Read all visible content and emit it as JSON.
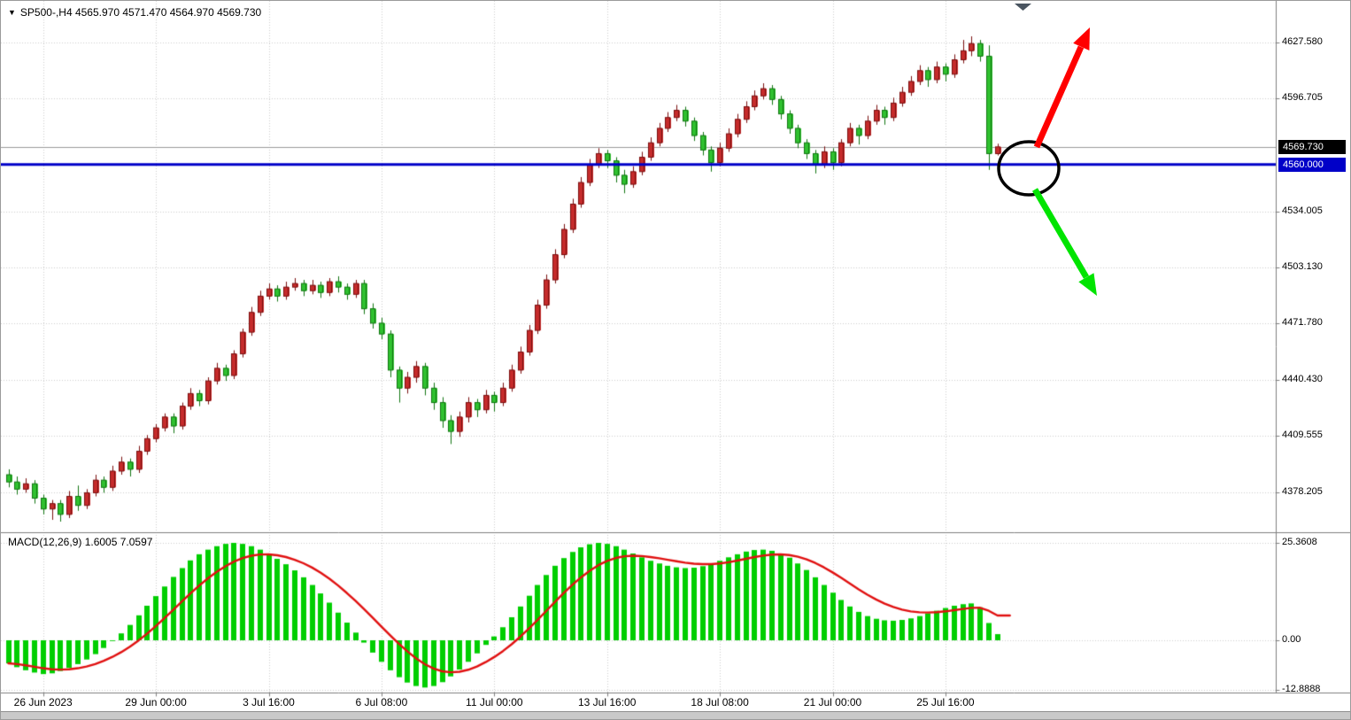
{
  "header": {
    "collapse_icon": "▼",
    "title": "SP500-,H4 4565.970 4571.470 4564.970 4569.730"
  },
  "macd_panel": {
    "label": "MACD(12,26,9) 1.6005 7.0597"
  },
  "price_axis": {
    "labels": [
      {
        "text": "4627.580",
        "value": 4627.58
      },
      {
        "text": "4596.705",
        "value": 4596.705
      },
      {
        "text": "4534.005",
        "value": 4534.005
      },
      {
        "text": "4503.130",
        "value": 4503.13
      },
      {
        "text": "4471.780",
        "value": 4471.78
      },
      {
        "text": "4440.430",
        "value": 4440.43
      },
      {
        "text": "4409.555",
        "value": 4409.555
      },
      {
        "text": "4378.205",
        "value": 4378.205
      }
    ],
    "current_tag": {
      "text": "4569.730",
      "value": 4569.73,
      "bg": "#000000"
    },
    "hline_tag": {
      "text": "4560.000",
      "value": 4560.0,
      "bg": "#0000C8"
    }
  },
  "time_axis": {
    "labels": [
      {
        "text": "26 Jun 2023",
        "bar": 4
      },
      {
        "text": "29 Jun 00:00",
        "bar": 17
      },
      {
        "text": "3 Jul 16:00",
        "bar": 30
      },
      {
        "text": "6 Jul 08:00",
        "bar": 43
      },
      {
        "text": "11 Jul 00:00",
        "bar": 56
      },
      {
        "text": "13 Jul 16:00",
        "bar": 69
      },
      {
        "text": "18 Jul 08:00",
        "bar": 82
      },
      {
        "text": "21 Jul 00:00",
        "bar": 95
      },
      {
        "text": "25 Jul 16:00",
        "bar": 108
      }
    ]
  },
  "chart_data": [
    {
      "type": "candlestick",
      "symbol": "SP500-",
      "timeframe": "H4",
      "current_ohlc": {
        "open": 4565.97,
        "high": 4571.47,
        "low": 4564.97,
        "close": 4569.73
      },
      "horizontal_line": 4560.0,
      "ylim": [
        4356,
        4648
      ],
      "candles": [
        [
          4388,
          4391,
          4381,
          4384
        ],
        [
          4384,
          4387,
          4377,
          4380
        ],
        [
          4380,
          4386,
          4378,
          4383
        ],
        [
          4383,
          4385,
          4372,
          4375
        ],
        [
          4375,
          4377,
          4366,
          4369
        ],
        [
          4369,
          4374,
          4363,
          4372
        ],
        [
          4372,
          4374,
          4362,
          4366
        ],
        [
          4366,
          4379,
          4364,
          4376
        ],
        [
          4376,
          4382,
          4368,
          4371
        ],
        [
          4371,
          4380,
          4369,
          4378
        ],
        [
          4378,
          4388,
          4376,
          4385
        ],
        [
          4385,
          4387,
          4378,
          4381
        ],
        [
          4381,
          4393,
          4379,
          4390
        ],
        [
          4390,
          4398,
          4388,
          4395
        ],
        [
          4395,
          4397,
          4387,
          4391
        ],
        [
          4391,
          4404,
          4389,
          4401
        ],
        [
          4401,
          4410,
          4399,
          4408
        ],
        [
          4408,
          4416,
          4406,
          4414
        ],
        [
          4414,
          4422,
          4412,
          4420
        ],
        [
          4420,
          4422,
          4411,
          4415
        ],
        [
          4415,
          4428,
          4413,
          4426
        ],
        [
          4426,
          4436,
          4424,
          4433
        ],
        [
          4433,
          4435,
          4426,
          4429
        ],
        [
          4429,
          4442,
          4427,
          4440
        ],
        [
          4440,
          4450,
          4438,
          4447
        ],
        [
          4447,
          4449,
          4440,
          4443
        ],
        [
          4443,
          4457,
          4441,
          4455
        ],
        [
          4455,
          4469,
          4453,
          4467
        ],
        [
          4467,
          4481,
          4465,
          4478
        ],
        [
          4478,
          4490,
          4476,
          4487
        ],
        [
          4487,
          4494,
          4485,
          4491
        ],
        [
          4491,
          4493,
          4484,
          4487
        ],
        [
          4487,
          4495,
          4485,
          4492
        ],
        [
          4492,
          4497,
          4490,
          4494
        ],
        [
          4494,
          4496,
          4487,
          4490
        ],
        [
          4490,
          4496,
          4488,
          4493
        ],
        [
          4493,
          4495,
          4486,
          4489
        ],
        [
          4489,
          4497,
          4487,
          4495
        ],
        [
          4495,
          4498,
          4489,
          4492
        ],
        [
          4492,
          4494,
          4485,
          4488
        ],
        [
          4488,
          4496,
          4486,
          4494
        ],
        [
          4494,
          4496,
          4477,
          4480
        ],
        [
          4480,
          4483,
          4469,
          4472
        ],
        [
          4472,
          4475,
          4463,
          4466
        ],
        [
          4466,
          4468,
          4442,
          4446
        ],
        [
          4446,
          4448,
          4428,
          4436
        ],
        [
          4436,
          4445,
          4433,
          4442
        ],
        [
          4442,
          4451,
          4439,
          4448
        ],
        [
          4448,
          4450,
          4432,
          4436
        ],
        [
          4436,
          4439,
          4424,
          4428
        ],
        [
          4428,
          4431,
          4414,
          4418
        ],
        [
          4418,
          4421,
          4405,
          4412
        ],
        [
          4412,
          4423,
          4409,
          4420
        ],
        [
          4420,
          4431,
          4417,
          4428
        ],
        [
          4428,
          4430,
          4420,
          4424
        ],
        [
          4424,
          4435,
          4422,
          4432
        ],
        [
          4432,
          4434,
          4423,
          4428
        ],
        [
          4428,
          4439,
          4426,
          4436
        ],
        [
          4436,
          4449,
          4434,
          4446
        ],
        [
          4446,
          4459,
          4444,
          4456
        ],
        [
          4456,
          4471,
          4454,
          4468
        ],
        [
          4468,
          4485,
          4466,
          4482
        ],
        [
          4482,
          4499,
          4480,
          4496
        ],
        [
          4496,
          4513,
          4494,
          4510
        ],
        [
          4510,
          4527,
          4508,
          4524
        ],
        [
          4524,
          4541,
          4522,
          4538
        ],
        [
          4538,
          4553,
          4536,
          4550
        ],
        [
          4550,
          4563,
          4548,
          4560
        ],
        [
          4560,
          4569,
          4558,
          4566
        ],
        [
          4566,
          4568,
          4558,
          4562
        ],
        [
          4562,
          4564,
          4550,
          4554
        ],
        [
          4554,
          4557,
          4544,
          4549
        ],
        [
          4549,
          4559,
          4547,
          4556
        ],
        [
          4556,
          4567,
          4554,
          4564
        ],
        [
          4564,
          4575,
          4562,
          4572
        ],
        [
          4572,
          4583,
          4570,
          4580
        ],
        [
          4580,
          4589,
          4578,
          4586
        ],
        [
          4586,
          4593,
          4584,
          4590
        ],
        [
          4590,
          4592,
          4581,
          4584
        ],
        [
          4584,
          4586,
          4573,
          4576
        ],
        [
          4576,
          4578,
          4565,
          4568
        ],
        [
          4568,
          4570,
          4556,
          4561
        ],
        [
          4561,
          4572,
          4559,
          4569
        ],
        [
          4569,
          4580,
          4567,
          4577
        ],
        [
          4577,
          4588,
          4575,
          4585
        ],
        [
          4585,
          4595,
          4583,
          4592
        ],
        [
          4592,
          4601,
          4590,
          4598
        ],
        [
          4598,
          4605,
          4596,
          4602
        ],
        [
          4602,
          4604,
          4593,
          4596
        ],
        [
          4596,
          4598,
          4585,
          4588
        ],
        [
          4588,
          4590,
          4577,
          4580
        ],
        [
          4580,
          4582,
          4569,
          4572
        ],
        [
          4572,
          4574,
          4563,
          4566
        ],
        [
          4566,
          4568,
          4555,
          4560
        ],
        [
          4560,
          4570,
          4558,
          4567
        ],
        [
          4567,
          4569,
          4557,
          4561
        ],
        [
          4561,
          4574,
          4559,
          4572
        ],
        [
          4572,
          4583,
          4570,
          4580
        ],
        [
          4580,
          4582,
          4571,
          4576
        ],
        [
          4576,
          4587,
          4574,
          4584
        ],
        [
          4584,
          4593,
          4582,
          4590
        ],
        [
          4590,
          4592,
          4582,
          4586
        ],
        [
          4586,
          4597,
          4584,
          4594
        ],
        [
          4594,
          4603,
          4592,
          4600
        ],
        [
          4600,
          4609,
          4598,
          4606
        ],
        [
          4606,
          4615,
          4604,
          4612
        ],
        [
          4612,
          4614,
          4603,
          4607
        ],
        [
          4607,
          4617,
          4605,
          4614
        ],
        [
          4614,
          4616,
          4606,
          4610
        ],
        [
          4610,
          4621,
          4608,
          4618
        ],
        [
          4618,
          4629,
          4616,
          4623
        ],
        [
          4623,
          4631,
          4620,
          4627
        ],
        [
          4627,
          4629,
          4617,
          4620
        ],
        [
          4620,
          4626,
          4557,
          4566
        ],
        [
          4565.97,
          4571.47,
          4564.97,
          4569.73
        ]
      ]
    },
    {
      "type": "bar",
      "name": "MACD(12,26,9)",
      "macd_value": 1.6005,
      "signal_value": 7.0597,
      "signal_formula": "EMA9",
      "y_axis_labels": [
        {
          "text": "25.3608",
          "value": 25.3608
        },
        {
          "text": "0.00",
          "value": 0
        },
        {
          "text": "-12.8888",
          "value": -12.8888
        }
      ],
      "values": [
        -6,
        -7,
        -7.8,
        -8.4,
        -8.8,
        -8.6,
        -8,
        -7.2,
        -6.2,
        -5,
        -3.6,
        -2,
        -0.2,
        1.8,
        4,
        6.5,
        9,
        11.5,
        14,
        16.5,
        18.8,
        20.8,
        22.4,
        23.6,
        24.5,
        25.1,
        25.36,
        25.1,
        24.5,
        23.6,
        22.5,
        21.2,
        19.8,
        18.2,
        16.4,
        14.4,
        12.2,
        9.8,
        7.2,
        4.6,
        2,
        -0.6,
        -3.2,
        -5.6,
        -7.8,
        -9.6,
        -11,
        -11.9,
        -12.3,
        -11.9,
        -10.9,
        -9.4,
        -7.6,
        -5.6,
        -3.4,
        -1.2,
        1,
        3.4,
        6,
        8.8,
        11.6,
        14.4,
        17,
        19.4,
        21.4,
        23,
        24.2,
        25,
        25.36,
        25.1,
        24.5,
        23.6,
        22.6,
        21.6,
        20.7,
        20,
        19.4,
        19,
        18.8,
        18.9,
        19.3,
        19.9,
        20.7,
        21.6,
        22.4,
        23.1,
        23.5,
        23.6,
        23.3,
        22.6,
        21.5,
        20,
        18.3,
        16.4,
        14.4,
        12.4,
        10.5,
        8.8,
        7.4,
        6.3,
        5.6,
        5.2,
        5.1,
        5.3,
        5.7,
        6.3,
        7,
        7.7,
        8.4,
        9,
        9.4,
        9.6,
        8.6,
        4.5,
        1.6005
      ]
    }
  ],
  "annotations": {
    "items": [
      "ellipse-highlight",
      "up-arrow",
      "down-arrow",
      "bar-marker-triangle"
    ]
  },
  "colors": {
    "bull": "#C62B2B",
    "bull_border": "#7A0F0F",
    "bear": "#2FC12F",
    "bear_border": "#117511",
    "macd_hist": "#00CE00",
    "macd_signal": "#E01010",
    "hline": "#0000C8",
    "current_price_line": "#9A9A9A",
    "grid": "#CDCDCD",
    "chrome": "#7F7F7F",
    "arrow_up": "#FF0000",
    "arrow_down": "#00E400",
    "circle": "#000000",
    "top_marker": "#4A5560"
  }
}
